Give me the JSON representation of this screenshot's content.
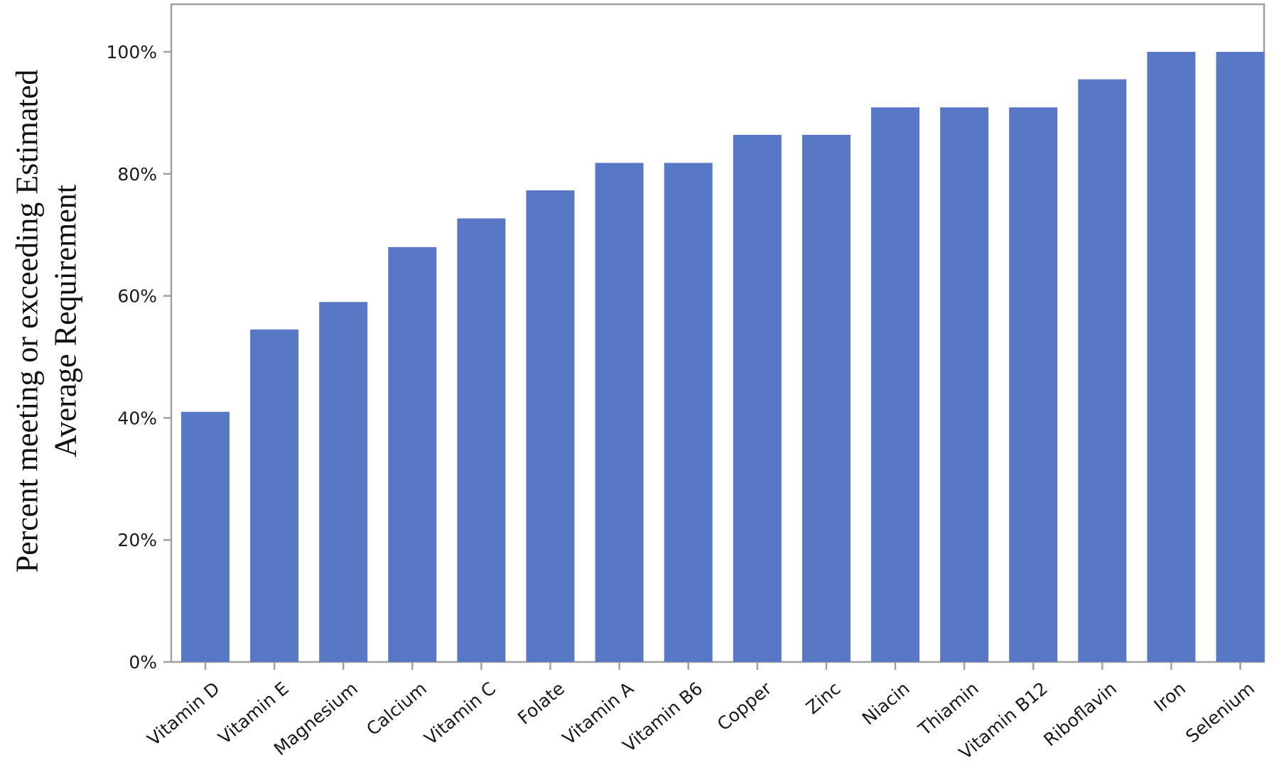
{
  "chart_data": {
    "type": "bar",
    "title": "",
    "xlabel": "",
    "ylabel": [
      "Percent meeting or exceeding Estimated",
      "Average Requirement"
    ],
    "categories": [
      "Vitamin D",
      "Vitamin E",
      "Magnesium",
      "Calcium",
      "Vitamin C",
      "Folate",
      "Vitamin A",
      "Vitamin B6",
      "Copper",
      "Zinc",
      "Niacin",
      "Thiamin",
      "Vitamin B12",
      "Riboflavin",
      "Iron",
      "Selenium"
    ],
    "values": [
      41,
      54.5,
      59,
      68,
      72.7,
      77.3,
      81.8,
      81.8,
      86.4,
      86.4,
      90.9,
      90.9,
      90.9,
      95.5,
      100,
      100
    ],
    "ylim": [
      0,
      100
    ],
    "yticks": [
      0,
      20,
      40,
      60,
      80,
      100
    ],
    "ytick_labels": [
      "0%",
      "20%",
      "40%",
      "60%",
      "80%",
      "100%"
    ],
    "bar_color": "#5877c4",
    "frame_color": "#a0a0a0",
    "grid": false,
    "legend": "none"
  }
}
